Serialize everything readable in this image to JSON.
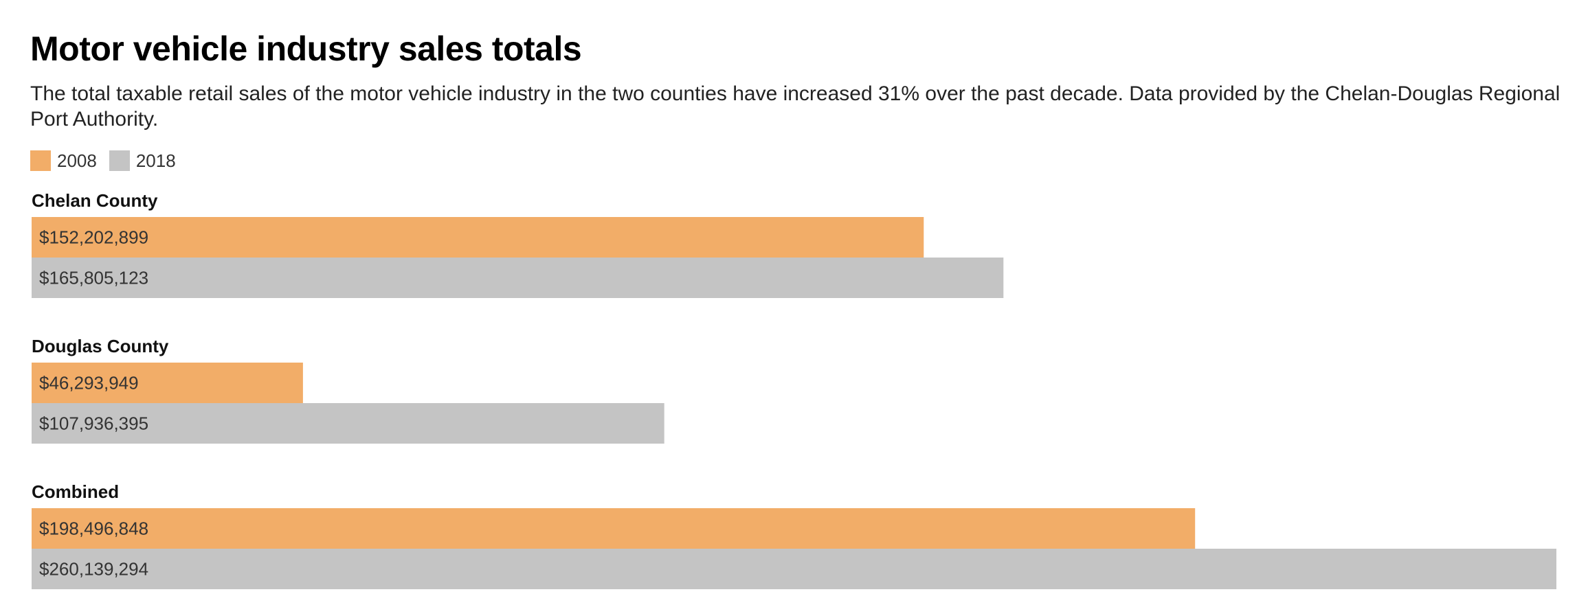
{
  "chart_data": {
    "type": "bar",
    "orientation": "horizontal",
    "title": "Motor vehicle industry sales totals",
    "subtitle": "The total taxable retail sales of the motor vehicle industry in the two counties have increased 31% over the past decade. Data provided by the Chelan-Douglas Regional Port Authority.",
    "categories": [
      "Chelan County",
      "Douglas County",
      "Combined"
    ],
    "series": [
      {
        "name": "2008",
        "color": "#f2ad68",
        "values": [
          152202899,
          46293949,
          198496848
        ],
        "labels": [
          "$152,202,899",
          "$46,293,949",
          "$198,496,848"
        ]
      },
      {
        "name": "2018",
        "color": "#c4c4c4",
        "values": [
          165805123,
          107936395,
          260139294
        ],
        "labels": [
          "$165,805,123",
          "$107,936,395",
          "$260,139,294"
        ]
      }
    ],
    "xlim": [
      0,
      260139294
    ],
    "legend_position": "top-left",
    "grid": false,
    "xlabel": "",
    "ylabel": ""
  }
}
